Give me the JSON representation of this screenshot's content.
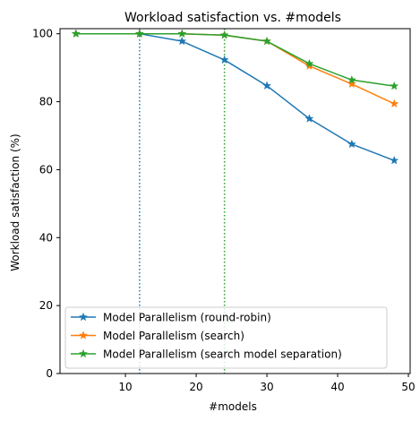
{
  "chart_data": {
    "type": "line",
    "title": "Workload satisfaction vs. #models",
    "xlabel": "#models",
    "ylabel": "Workload satisfaction (%)",
    "xlim": [
      0.75,
      50.25
    ],
    "ylim": [
      0,
      101.5
    ],
    "xticks": [
      10,
      20,
      30,
      40,
      50
    ],
    "yticks": [
      0,
      20,
      40,
      60,
      80,
      100
    ],
    "grid": false,
    "legend_position": "lower-left",
    "vlines": [
      {
        "x": 12,
        "color": "#1f77b4",
        "style": "dotted"
      },
      {
        "x": 24,
        "color": "#2ca02c",
        "style": "dotted"
      }
    ],
    "x": [
      3,
      12,
      18,
      24,
      30,
      36,
      42,
      48
    ],
    "series": [
      {
        "name": "Model Parallelism (round-robin)",
        "color": "#1f77b4",
        "marker": "star",
        "values": [
          100,
          100,
          97.8,
          92.3,
          84.7,
          75.0,
          67.5,
          62.7
        ]
      },
      {
        "name": "Model Parallelism (search)",
        "color": "#ff7f0e",
        "marker": "star",
        "values": [
          100,
          100,
          100,
          99.6,
          97.8,
          90.5,
          85.2,
          79.4
        ]
      },
      {
        "name": "Model Parallelism (search model separation)",
        "color": "#2ca02c",
        "marker": "star",
        "values": [
          100,
          100,
          100,
          99.6,
          97.8,
          91.2,
          86.4,
          84.6
        ]
      }
    ]
  }
}
